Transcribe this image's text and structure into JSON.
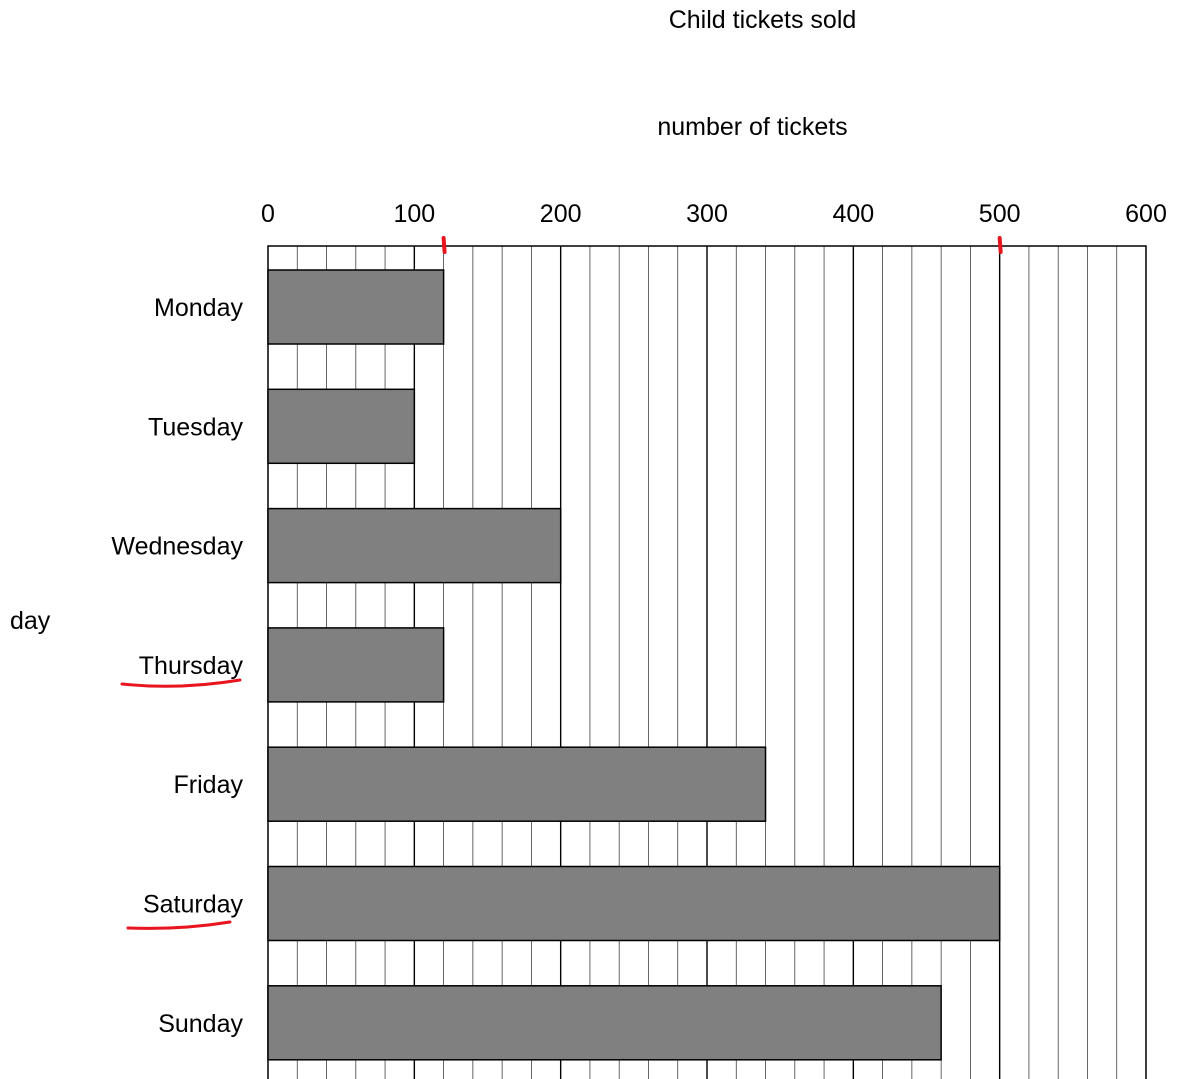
{
  "chart_data": {
    "type": "bar",
    "orientation": "horizontal",
    "title": "Child tickets sold",
    "xlabel": "number of tickets",
    "ylabel": "day",
    "categories": [
      "Monday",
      "Tuesday",
      "Wednesday",
      "Thursday",
      "Friday",
      "Saturday",
      "Sunday"
    ],
    "values": [
      120,
      100,
      200,
      120,
      340,
      500,
      460
    ],
    "xlim": [
      0,
      600
    ],
    "xticks": [
      "0",
      "100",
      "200",
      "300",
      "400",
      "500",
      "600"
    ],
    "minor_step": 20,
    "grid": true,
    "bar_color": "#808080",
    "annotations": {
      "color": "#e8141e",
      "underlined_categories": [
        "Thursday",
        "Saturday"
      ],
      "axis_marks_at": [
        120,
        500
      ]
    }
  }
}
